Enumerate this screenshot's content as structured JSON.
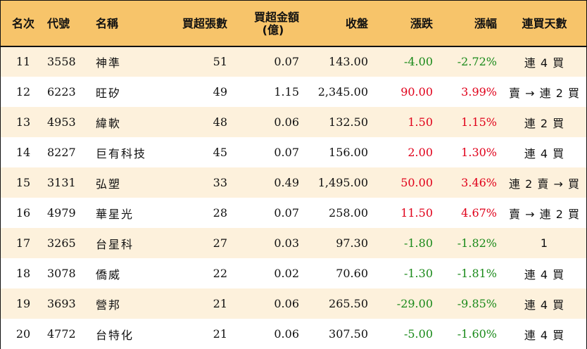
{
  "colors": {
    "header_bg": "#f7c46a",
    "row_odd_bg": "#fdf1dc",
    "up": "#e0001a",
    "down": "#1a8a1a"
  },
  "headers": {
    "rank": "名次",
    "code": "代號",
    "name": "名稱",
    "net_buy_lots": "買超張數",
    "net_buy_amount_l1": "買超金額",
    "net_buy_amount_l2": "(億)",
    "close": "收盤",
    "change": "漲跌",
    "change_pct": "漲幅",
    "consec_days": "連買天數"
  },
  "rows": [
    {
      "rank": "11",
      "code": "3558",
      "name": "神準",
      "lots": "51",
      "amount": "0.07",
      "close": "143.00",
      "change": "-4.00",
      "pct": "-2.72%",
      "dir": "down",
      "days": "連 4 買"
    },
    {
      "rank": "12",
      "code": "6223",
      "name": "旺矽",
      "lots": "49",
      "amount": "1.15",
      "close": "2,345.00",
      "change": "90.00",
      "pct": "3.99%",
      "dir": "up",
      "days": "賣 → 連 2 買"
    },
    {
      "rank": "13",
      "code": "4953",
      "name": "緯軟",
      "lots": "48",
      "amount": "0.06",
      "close": "132.50",
      "change": "1.50",
      "pct": "1.15%",
      "dir": "up",
      "days": "連 2 買"
    },
    {
      "rank": "14",
      "code": "8227",
      "name": "巨有科技",
      "lots": "45",
      "amount": "0.07",
      "close": "156.00",
      "change": "2.00",
      "pct": "1.30%",
      "dir": "up",
      "days": "連 4 買"
    },
    {
      "rank": "15",
      "code": "3131",
      "name": "弘塑",
      "lots": "33",
      "amount": "0.49",
      "close": "1,495.00",
      "change": "50.00",
      "pct": "3.46%",
      "dir": "up",
      "days": "連 2 賣 → 買"
    },
    {
      "rank": "16",
      "code": "4979",
      "name": "華星光",
      "lots": "28",
      "amount": "0.07",
      "close": "258.00",
      "change": "11.50",
      "pct": "4.67%",
      "dir": "up",
      "days": "賣 → 連 2 買"
    },
    {
      "rank": "17",
      "code": "3265",
      "name": "台星科",
      "lots": "27",
      "amount": "0.03",
      "close": "97.30",
      "change": "-1.80",
      "pct": "-1.82%",
      "dir": "down",
      "days": "1"
    },
    {
      "rank": "18",
      "code": "3078",
      "name": "僑威",
      "lots": "22",
      "amount": "0.02",
      "close": "70.60",
      "change": "-1.30",
      "pct": "-1.81%",
      "dir": "down",
      "days": "連 4 買"
    },
    {
      "rank": "19",
      "code": "3693",
      "name": "營邦",
      "lots": "21",
      "amount": "0.06",
      "close": "265.50",
      "change": "-29.00",
      "pct": "-9.85%",
      "dir": "down",
      "days": "連 4 買"
    },
    {
      "rank": "20",
      "code": "4772",
      "name": "台特化",
      "lots": "21",
      "amount": "0.06",
      "close": "307.50",
      "change": "-5.00",
      "pct": "-1.60%",
      "dir": "down",
      "days": "連 4 買"
    }
  ]
}
